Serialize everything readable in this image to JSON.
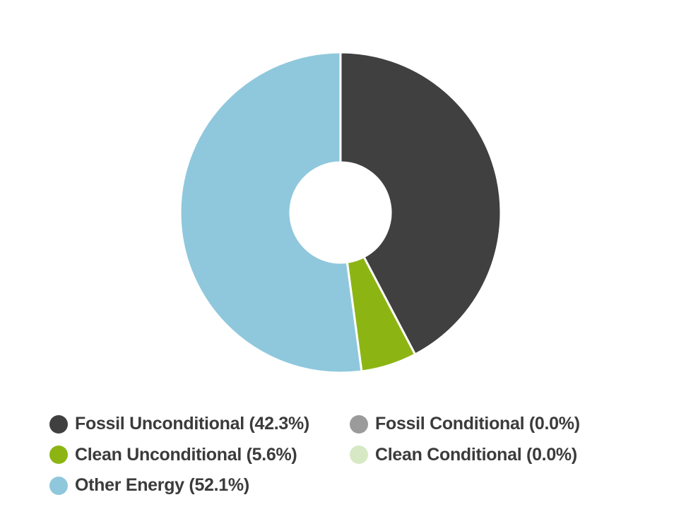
{
  "page": {
    "background": "#ffffff"
  },
  "chart_data": {
    "type": "pie",
    "subtype": "donut",
    "title": "",
    "start_angle_deg": 0,
    "direction": "clockwise",
    "inner_radius_ratio": 0.31,
    "categories": [
      "Fossil Unconditional",
      "Fossil Conditional",
      "Clean Unconditional",
      "Clean Conditional",
      "Other Energy"
    ],
    "values": [
      42.3,
      0.0,
      5.6,
      0.0,
      52.1
    ],
    "unit": "%",
    "colors": [
      "#404040",
      "#9B9B9B",
      "#8CB513",
      "#D6E9C4",
      "#8FC8DC"
    ],
    "slice_separator_color": "#FFFFFF",
    "legend_position": "bottom-left",
    "legend_columns": 2
  },
  "legend": {
    "text_color": "#3B3B3B",
    "items": [
      {
        "label": "Fossil Unconditional (42.3%)",
        "color": "#404040"
      },
      {
        "label": "Fossil Conditional (0.0%)",
        "color": "#9B9B9B"
      },
      {
        "label": "Clean Unconditional (5.6%)",
        "color": "#8CB513"
      },
      {
        "label": "Clean Conditional (0.0%)",
        "color": "#D6E9C4"
      },
      {
        "label": "Other Energy (52.1%)",
        "color": "#8FC8DC"
      }
    ]
  }
}
